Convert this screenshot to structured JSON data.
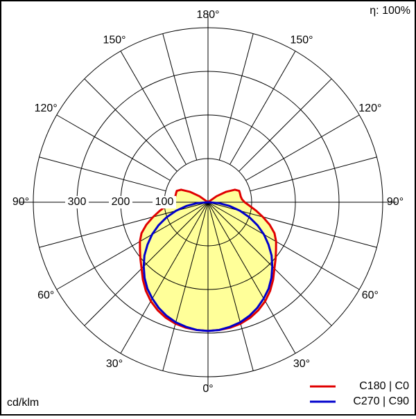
{
  "chart_data": {
    "type": "polar",
    "efficiency_label": "η: 100%",
    "unit_label": "cd/klm",
    "x": [
      0,
      5,
      10,
      15,
      20,
      25,
      30,
      35,
      40,
      45,
      50,
      55,
      60,
      65,
      70,
      75,
      80,
      85,
      90,
      95,
      100,
      105,
      110,
      115,
      120,
      125,
      130
    ],
    "series": [
      {
        "name": "C180 | C0",
        "color": "#e00000",
        "values": [
          295,
          294,
          292,
          288,
          282,
          273,
          262,
          248,
          232,
          215,
          202,
          190,
          180,
          168,
          150,
          130,
          112,
          96,
          84,
          78,
          76,
          76,
          76,
          68,
          48,
          24,
          0
        ]
      },
      {
        "name": "C270 | C90",
        "color": "#0000cc",
        "values": [
          295,
          294,
          290,
          285,
          277,
          267,
          255,
          242,
          226,
          208,
          190,
          169,
          148,
          125,
          101,
          76,
          51,
          26,
          0,
          0,
          0,
          0,
          0,
          0,
          0,
          0,
          0
        ]
      }
    ],
    "fill_color": "#ffff99",
    "rlim": [
      0,
      400
    ],
    "rticks": [
      100,
      200,
      300,
      400
    ],
    "rtick_labels": [
      100,
      200,
      300
    ],
    "angle_grid_step": 15,
    "angle_ticks": [
      {
        "value": 0,
        "label": "0°"
      },
      {
        "value": 30,
        "label": "30°"
      },
      {
        "value": 60,
        "label": "60°"
      },
      {
        "value": 90,
        "label": "90°"
      },
      {
        "value": 120,
        "label": "120°"
      },
      {
        "value": 150,
        "label": "150°"
      },
      {
        "value": 180,
        "label": "180°"
      }
    ]
  }
}
